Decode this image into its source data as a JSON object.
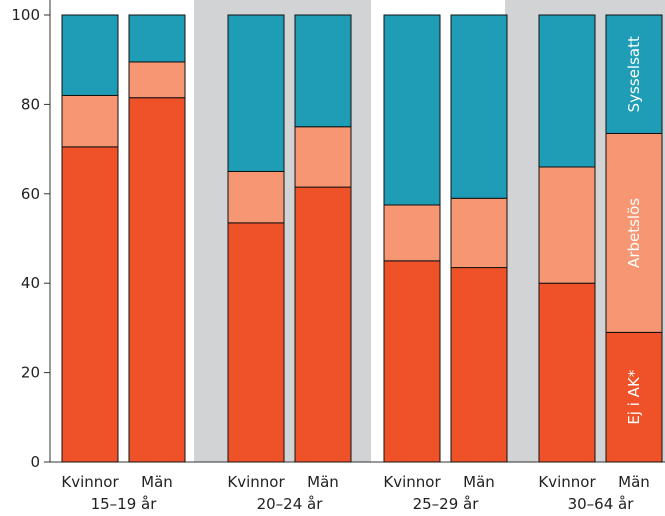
{
  "chart_data": {
    "type": "bar",
    "stacked": true,
    "orientation": "vertical",
    "title": "",
    "xlabel": "",
    "ylabel": "",
    "ylim": [
      0,
      100
    ],
    "yticks": [
      0,
      20,
      40,
      60,
      80,
      100
    ],
    "grid": false,
    "categories": [
      "Kvinnor",
      "Män",
      "Kvinnor",
      "Män",
      "Kvinnor",
      "Män",
      "Kvinnor",
      "Män"
    ],
    "groups": [
      {
        "label": "15–19 år",
        "members": [
          0,
          1
        ]
      },
      {
        "label": "20–24 år",
        "members": [
          2,
          3
        ]
      },
      {
        "label": "25–29 år",
        "members": [
          4,
          5
        ]
      },
      {
        "label": "30–64 år",
        "members": [
          6,
          7
        ]
      }
    ],
    "series": [
      {
        "name": "Ej i AK*",
        "color": "#ef5228",
        "values": [
          70.5,
          81.5,
          53.5,
          61.5,
          45,
          43.5,
          40,
          29
        ]
      },
      {
        "name": "Arbetslös",
        "color": "#f69672",
        "values": [
          11.5,
          8,
          11.5,
          13.5,
          12.5,
          15.5,
          26,
          44.5
        ]
      },
      {
        "name": "Sysselsatt",
        "color": "#209db6",
        "values": [
          18,
          10.5,
          35,
          25,
          42.5,
          41,
          34,
          26.5
        ]
      }
    ],
    "legend_placement": "inside last bar (vertical labels)",
    "band_color": "#d2d3d5"
  }
}
